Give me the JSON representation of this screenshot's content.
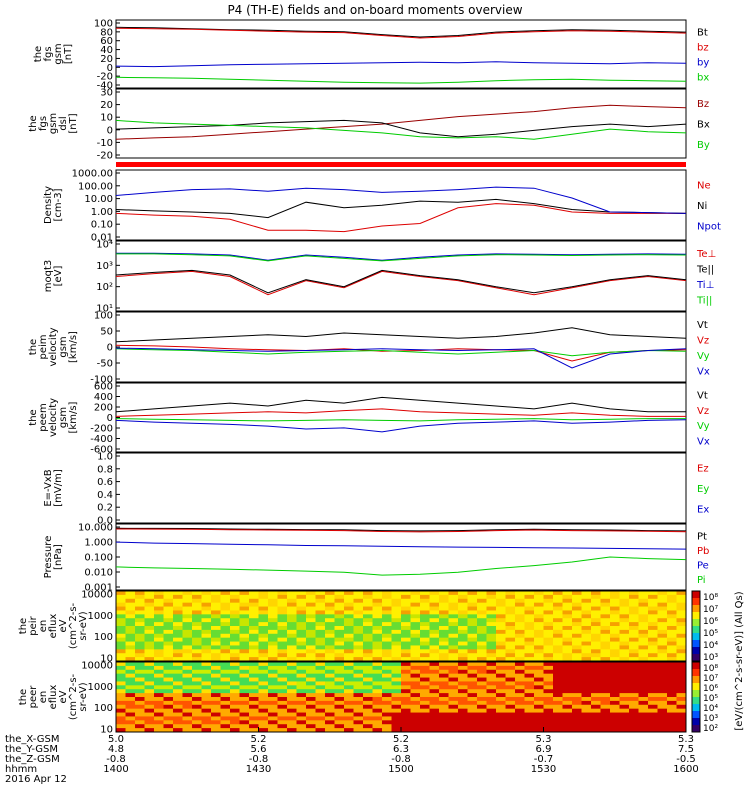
{
  "title": "P4 (TH-E) fields and on-board moments overview",
  "time_labels": {
    "rows": [
      "the_X-GSM",
      "the_Y-GSM",
      "the_Z-GSM",
      "hhmm",
      "2016 Apr 12"
    ],
    "columns": [
      [
        "5.0",
        "4.8",
        "-0.8",
        "1400"
      ],
      [
        "5.2",
        "5.6",
        "-0.8",
        "1430"
      ],
      [
        "5.2",
        "6.3",
        "-0.8",
        "1500"
      ],
      [
        "5.3",
        "6.9",
        "-0.7",
        "1530"
      ],
      [
        "5.3",
        "7.5",
        "-0.5",
        "1600"
      ]
    ]
  },
  "colors": {
    "black": "#000000",
    "red": "#dd0000",
    "blue": "#0000cc",
    "green": "#00cc00",
    "dark_red": "#990000"
  },
  "chart_data": [
    {
      "type": "line",
      "ylabel": [
        "the",
        "fgs",
        "gsm",
        "[nT]"
      ],
      "ylim": [
        -40,
        100
      ],
      "yticks": [
        "100",
        "80",
        "60",
        "40",
        "20",
        "0",
        "-20",
        "-40"
      ],
      "legend": [
        "Bt",
        "bz",
        "by",
        "bx"
      ],
      "series": [
        {
          "name": "Bt",
          "color": "#000000",
          "values": [
            85,
            84,
            82,
            80,
            79,
            77,
            76,
            70,
            65,
            68,
            75,
            78,
            80,
            79,
            77,
            75
          ]
        },
        {
          "name": "bz",
          "color": "#dd0000",
          "values": [
            83,
            82,
            81,
            79,
            77,
            75,
            74,
            68,
            63,
            66,
            73,
            76,
            78,
            77,
            75,
            73
          ]
        },
        {
          "name": "by",
          "color": "#0000cc",
          "values": [
            5,
            4,
            6,
            8,
            9,
            10,
            11,
            12,
            13,
            12,
            14,
            12,
            11,
            10,
            12,
            11
          ]
        },
        {
          "name": "bx",
          "color": "#00cc00",
          "values": [
            -18,
            -19,
            -20,
            -22,
            -24,
            -26,
            -28,
            -29,
            -30,
            -28,
            -25,
            -23,
            -22,
            -24,
            -25,
            -26
          ]
        }
      ]
    },
    {
      "type": "line",
      "ylabel": [
        "the",
        "fgs",
        "gsm",
        "dsl",
        "[nT]"
      ],
      "ylim": [
        -25,
        30
      ],
      "yticks": [
        "30",
        "20",
        "10",
        "0",
        "-10",
        "-20"
      ],
      "legend": [
        "Bz",
        "Bx",
        "By"
      ],
      "series": [
        {
          "name": "Bz",
          "color": "#990000",
          "values": [
            -10,
            -9,
            -8,
            -6,
            -4,
            -2,
            0,
            2,
            5,
            8,
            10,
            12,
            15,
            17,
            16,
            15
          ]
        },
        {
          "name": "Bx",
          "color": "#000000",
          "values": [
            -2,
            -1,
            0,
            1,
            3,
            4,
            5,
            3,
            -5,
            -8,
            -6,
            -3,
            0,
            2,
            0,
            2
          ]
        },
        {
          "name": "By",
          "color": "#00cc00",
          "values": [
            5,
            3,
            2,
            1,
            0,
            -1,
            -3,
            -5,
            -8,
            -9,
            -8,
            -10,
            -6,
            -2,
            -4,
            -5
          ]
        }
      ]
    },
    {
      "type": "line",
      "ylabel": [
        "Density",
        "[cm-3]"
      ],
      "ylim": [
        0.01,
        1000
      ],
      "yscale": "log",
      "yticks": [
        "1000.00",
        "100.00",
        "10.00",
        "1.00",
        "0.10",
        "0.01"
      ],
      "legend": [
        "Ne",
        "Ni",
        "Npot"
      ],
      "series": [
        {
          "name": "Ne",
          "color": "#dd0000",
          "values": [
            0.8,
            0.6,
            0.5,
            0.3,
            0.05,
            0.05,
            0.04,
            0.1,
            0.15,
            2,
            4,
            3,
            1,
            0.8,
            0.8,
            0.8
          ]
        },
        {
          "name": "Ni",
          "color": "#000000",
          "values": [
            1.5,
            1.2,
            1.0,
            0.8,
            0.4,
            5,
            2,
            3,
            6,
            5,
            8,
            4,
            1.5,
            1.0,
            0.9,
            0.8
          ]
        },
        {
          "name": "Npot",
          "color": "#0000cc",
          "values": [
            15,
            25,
            40,
            45,
            30,
            50,
            40,
            25,
            30,
            40,
            60,
            50,
            10,
            1.0,
            0.9,
            0.8
          ]
        }
      ]
    },
    {
      "type": "line",
      "ylabel": [
        "moqt3",
        "[eV]"
      ],
      "ylim": [
        10,
        10000
      ],
      "yscale": "log",
      "yticks": [
        "10⁴",
        "10³",
        "10²",
        "10¹"
      ],
      "legend": [
        "Te⊥",
        "Te||",
        "Ti⊥",
        "Ti||"
      ],
      "series": [
        {
          "name": "Te⊥",
          "color": "#dd0000",
          "values": [
            300,
            400,
            500,
            300,
            50,
            200,
            100,
            500,
            300,
            200,
            100,
            50,
            100,
            200,
            300,
            200
          ]
        },
        {
          "name": "Te||",
          "color": "#000000",
          "values": [
            350,
            450,
            550,
            350,
            60,
            220,
            110,
            550,
            330,
            220,
            110,
            60,
            110,
            220,
            330,
            220
          ]
        },
        {
          "name": "Ti⊥",
          "color": "#0000cc",
          "values": [
            3000,
            3000,
            2800,
            2500,
            1500,
            2500,
            2000,
            1500,
            2000,
            2500,
            2800,
            2700,
            2600,
            2700,
            2800,
            2700
          ]
        },
        {
          "name": "Ti||",
          "color": "#00cc00",
          "values": [
            2800,
            2800,
            2600,
            2300,
            1400,
            2300,
            1800,
            1400,
            1800,
            2300,
            2600,
            2500,
            2400,
            2500,
            2600,
            2500
          ]
        }
      ]
    },
    {
      "type": "line",
      "ylabel": [
        "the",
        "peim",
        "velocity",
        "gsm",
        "[km/s]"
      ],
      "ylim": [
        -100,
        100
      ],
      "yticks": [
        "100",
        "50",
        "0",
        "-50",
        "-100"
      ],
      "legend": [
        "Vt",
        "Vz",
        "Vy",
        "Vx"
      ],
      "series": [
        {
          "name": "Vt",
          "color": "#000000",
          "values": [
            15,
            20,
            25,
            30,
            35,
            30,
            40,
            35,
            30,
            25,
            30,
            40,
            55,
            35,
            30,
            25
          ]
        },
        {
          "name": "Vz",
          "color": "#dd0000",
          "values": [
            5,
            3,
            0,
            -5,
            -8,
            -10,
            -5,
            -12,
            -10,
            -5,
            -8,
            -10,
            -40,
            -15,
            -10,
            -8
          ]
        },
        {
          "name": "Vy",
          "color": "#00cc00",
          "values": [
            -5,
            -8,
            -10,
            -15,
            -20,
            -15,
            -12,
            -10,
            -15,
            -20,
            -15,
            -10,
            -25,
            -15,
            -10,
            -12
          ]
        },
        {
          "name": "Vx",
          "color": "#0000cc",
          "values": [
            -3,
            -5,
            -8,
            -10,
            -12,
            -10,
            -8,
            -5,
            -8,
            -10,
            -8,
            -5,
            -60,
            -20,
            -10,
            -5
          ]
        }
      ]
    },
    {
      "type": "line",
      "ylabel": [
        "the",
        "peem",
        "velocity",
        "gsm",
        "[km/s]"
      ],
      "ylim": [
        -600,
        600
      ],
      "yticks": [
        "600",
        "400",
        "200",
        "0",
        "-200",
        "-400",
        "-600"
      ],
      "legend": [
        "Vt",
        "Vz",
        "Vy",
        "Vx"
      ],
      "series": [
        {
          "name": "Vt",
          "color": "#000000",
          "values": [
            100,
            150,
            200,
            250,
            200,
            300,
            250,
            350,
            300,
            250,
            200,
            150,
            250,
            150,
            100,
            100
          ]
        },
        {
          "name": "Vz",
          "color": "#dd0000",
          "values": [
            20,
            40,
            60,
            80,
            100,
            80,
            120,
            150,
            100,
            80,
            60,
            40,
            80,
            40,
            20,
            20
          ]
        },
        {
          "name": "Vy",
          "color": "#00cc00",
          "values": [
            -20,
            -30,
            -40,
            -50,
            -60,
            -50,
            -40,
            -50,
            -60,
            -40,
            -30,
            -20,
            -40,
            -30,
            -20,
            -20
          ]
        },
        {
          "name": "Vx",
          "color": "#0000cc",
          "values": [
            -50,
            -80,
            -100,
            -120,
            -150,
            -200,
            -180,
            -250,
            -150,
            -100,
            -80,
            -60,
            -100,
            -80,
            -50,
            -40
          ]
        }
      ]
    },
    {
      "type": "line",
      "ylabel": [
        "E=-VxB",
        "[mV/m]"
      ],
      "ylim": [
        0,
        1
      ],
      "yticks": [
        "1.0",
        "0.8",
        "0.6",
        "0.4",
        "0.2",
        "0.0"
      ],
      "legend": [
        "Ez",
        "Ey",
        "Ex"
      ],
      "series": [
        {
          "name": "Ez",
          "color": "#dd0000",
          "values": []
        },
        {
          "name": "Ey",
          "color": "#00cc00",
          "values": []
        },
        {
          "name": "Ex",
          "color": "#0000cc",
          "values": []
        }
      ]
    },
    {
      "type": "line",
      "ylabel": [
        "Pressure",
        "[nPa]"
      ],
      "ylim": [
        0.001,
        10
      ],
      "yscale": "log",
      "yticks": [
        "10.000",
        "1.000",
        "0.100",
        "0.010",
        "0.001"
      ],
      "legend": [
        "Pt",
        "Pb",
        "Pe",
        "Pi"
      ],
      "series": [
        {
          "name": "Pt",
          "color": "#000000",
          "values": [
            5.5,
            5.4,
            5.3,
            5.0,
            4.8,
            4.6,
            4.5,
            4.0,
            3.8,
            4.0,
            4.5,
            4.8,
            4.5,
            4.3,
            4.0,
            3.8
          ]
        },
        {
          "name": "Pb",
          "color": "#dd0000",
          "values": [
            5.0,
            4.9,
            4.8,
            4.5,
            4.3,
            4.2,
            4.0,
            3.5,
            3.3,
            3.5,
            4.0,
            4.3,
            4.0,
            3.8,
            3.6,
            3.4
          ]
        },
        {
          "name": "Pe",
          "color": "#0000cc",
          "values": [
            0.8,
            0.7,
            0.65,
            0.6,
            0.55,
            0.5,
            0.48,
            0.45,
            0.42,
            0.4,
            0.38,
            0.36,
            0.35,
            0.33,
            0.32,
            0.3
          ]
        },
        {
          "name": "Pi",
          "color": "#00cc00",
          "values": [
            0.025,
            0.022,
            0.02,
            0.018,
            0.016,
            0.014,
            0.012,
            0.008,
            0.009,
            0.012,
            0.02,
            0.03,
            0.05,
            0.1,
            0.08,
            0.07
          ]
        }
      ]
    },
    {
      "type": "heatmap",
      "ylabel": [
        "the",
        "peir",
        "en",
        "eflux",
        "eV",
        "(cm^2-s-",
        "sr-eV)"
      ],
      "ylim": [
        5,
        30000
      ],
      "yscale": "log",
      "yticks": [
        "10000",
        "1000",
        "100",
        "10"
      ],
      "colorbar_ticks": [
        "10⁸",
        "10⁷",
        "10⁶",
        "10⁵",
        "10⁴",
        "10³"
      ]
    },
    {
      "type": "heatmap",
      "ylabel": [
        "the",
        "peer",
        "en",
        "eflux",
        "eV",
        "(cm^2-s-",
        "sr-eV)"
      ],
      "ylim": [
        5,
        30000
      ],
      "yscale": "log",
      "yticks": [
        "10000",
        "1000",
        "100",
        "10"
      ],
      "colorbar_ticks": [
        "10⁸",
        "10⁷",
        "10⁶",
        "10⁵",
        "10⁴",
        "10³",
        "10²"
      ]
    }
  ],
  "colorbar_label": "[eV/(cm^2-s-sr-eV)] (All Qs)"
}
